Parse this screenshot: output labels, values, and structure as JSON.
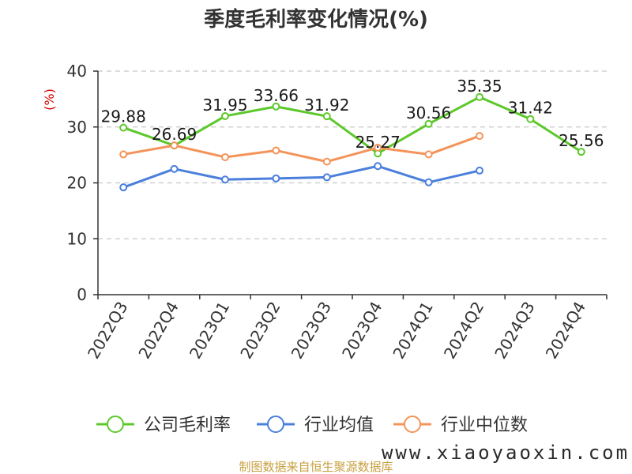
{
  "chart_data": {
    "type": "line",
    "title": "季度毛利率变化情况(%)",
    "ylabel": "(%)",
    "xlabel": "",
    "ylim": [
      0,
      40
    ],
    "yticks": [
      0,
      10,
      20,
      30,
      40
    ],
    "grid": "horizontal dashed",
    "legend_position": "bottom",
    "categories": [
      "2022Q3",
      "2022Q4",
      "2023Q1",
      "2023Q2",
      "2023Q3",
      "2023Q4",
      "2024Q1",
      "2024Q2",
      "2024Q3",
      "2024Q4"
    ],
    "series": [
      {
        "name": "公司毛利率",
        "color": "#5cc82a",
        "values": [
          29.88,
          26.69,
          31.95,
          33.66,
          31.92,
          25.27,
          30.56,
          35.35,
          31.42,
          25.56
        ],
        "labels": [
          "29.88",
          "26.69",
          "31.95",
          "33.66",
          "31.92",
          "25.27",
          "30.56",
          "35.35",
          "31.42",
          "25.56"
        ]
      },
      {
        "name": "行业均值",
        "color": "#4a7fdc",
        "values": [
          19.2,
          22.5,
          20.6,
          20.8,
          21.0,
          23.0,
          20.1,
          22.2,
          null,
          null
        ]
      },
      {
        "name": "行业中位数",
        "color": "#f4935a",
        "values": [
          25.1,
          26.7,
          24.6,
          25.8,
          23.8,
          26.3,
          25.1,
          28.4,
          null,
          null
        ]
      }
    ]
  },
  "source_text": "制图数据来自恒生聚源数据库",
  "watermark": "www.xiaoyaoxin.com"
}
